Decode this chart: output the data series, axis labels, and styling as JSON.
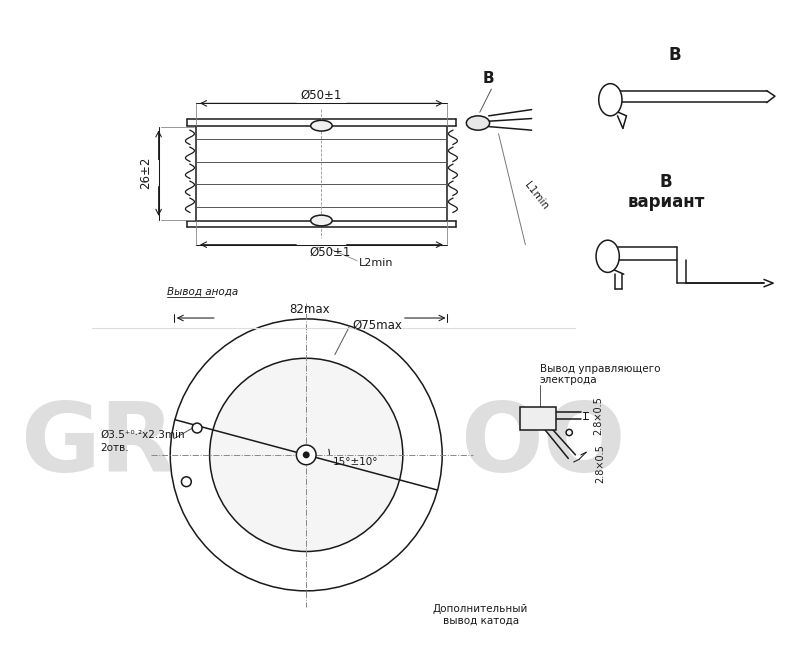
{
  "bg_color": "#ffffff",
  "lc": "#1a1a1a",
  "labels": {
    "phi50_top": "Ø50±1",
    "phi50_bottom": "Ø50±1",
    "height_26": "26±2",
    "L1min": "L1min",
    "L2min": "L2min",
    "anode_lead": "Вывод анода",
    "82max": "82max",
    "phi75max": "Ø75max",
    "phi35_line1": "Ø3.5⁺⁰·²x2.3min",
    "phi35_line2": "2отв.",
    "angle_15": "15°±10°",
    "gate_lead_line1": "Вывод управляющего",
    "gate_lead_line2": "электрода",
    "dim_28x05": "2.8×0.5",
    "cathode_lead_line1": "Дополнительный",
    "cathode_lead_line2": "вывод катода",
    "B_top": "B",
    "B_variant": "B",
    "variant": "вариант"
  }
}
